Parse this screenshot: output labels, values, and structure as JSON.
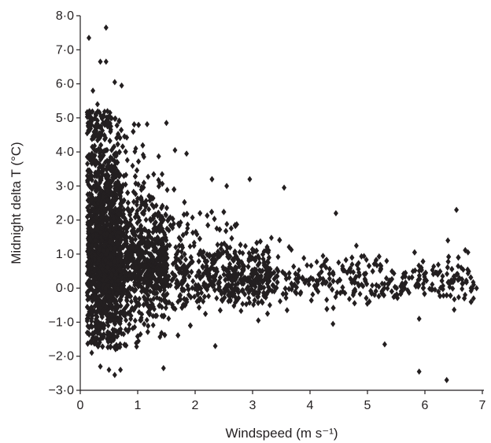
{
  "chart_data": {
    "type": "scatter",
    "title": "",
    "xlabel": "Windspeed (m s⁻¹)",
    "ylabel": "Midnight delta T (°C)",
    "xlim": [
      0,
      7
    ],
    "ylim": [
      -3,
      8
    ],
    "xticks": [
      "0",
      "1",
      "2",
      "3",
      "4",
      "5",
      "6",
      "7"
    ],
    "yticks": [
      "−3·0",
      "−2·0",
      "−1·0",
      "0·0",
      "1·0",
      "2·0",
      "3·0",
      "4·0",
      "5·0",
      "6·0",
      "7·0",
      "8·0"
    ],
    "grid": false,
    "marker": "diamond",
    "color": "#231f20",
    "series": [
      {
        "values_note": "",
        "points": [
          [
            0.15,
            7.35
          ],
          [
            0.45,
            7.65
          ],
          [
            0.35,
            6.65
          ],
          [
            0.45,
            6.65
          ],
          [
            0.6,
            6.05
          ],
          [
            0.72,
            5.95
          ],
          [
            0.3,
            5.4
          ],
          [
            0.22,
            5.8
          ],
          [
            1.5,
            4.85
          ],
          [
            1.65,
            4.05
          ],
          [
            1.85,
            3.95
          ],
          [
            2.55,
            3.0
          ],
          [
            2.95,
            3.2
          ],
          [
            3.55,
            2.95
          ],
          [
            4.45,
            2.2
          ],
          [
            6.55,
            2.3
          ],
          [
            6.4,
            1.4
          ],
          [
            6.75,
            1.05
          ],
          [
            0.35,
            -2.3
          ],
          [
            0.5,
            -2.4
          ],
          [
            0.6,
            -2.55
          ],
          [
            0.7,
            -2.4
          ],
          [
            0.2,
            -1.9
          ],
          [
            1.45,
            -2.35
          ],
          [
            2.35,
            -1.7
          ],
          [
            5.3,
            -1.65
          ],
          [
            5.9,
            -2.45
          ],
          [
            6.38,
            -2.7
          ],
          [
            5.9,
            -0.9
          ],
          [
            4.4,
            -1.05
          ],
          [
            3.1,
            -0.95
          ],
          [
            3.6,
            -0.65
          ],
          [
            6.85,
            0.1
          ],
          [
            6.9,
            0.0
          ],
          [
            6.7,
            -0.2
          ],
          [
            6.6,
            0.3
          ]
        ]
      }
    ]
  }
}
